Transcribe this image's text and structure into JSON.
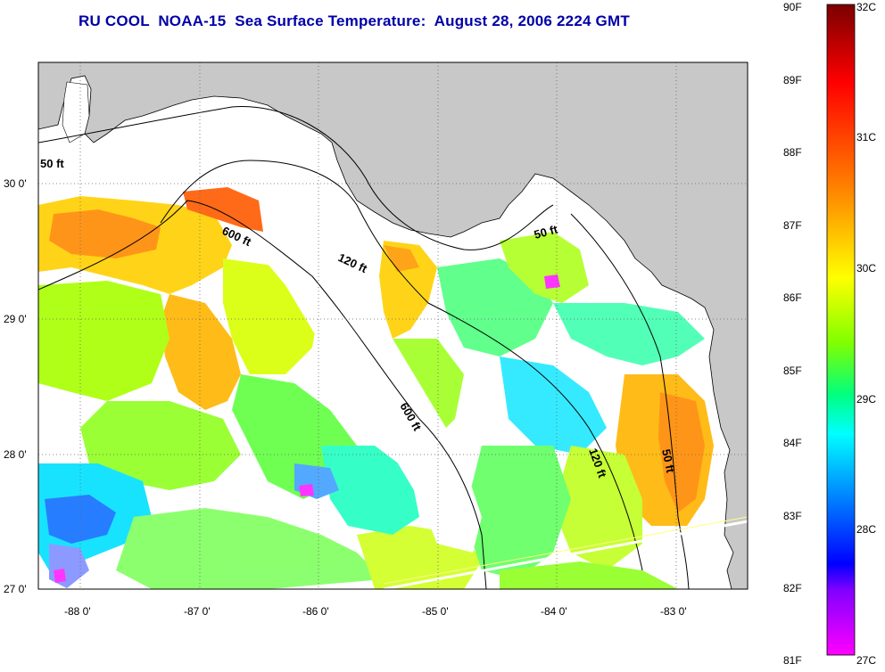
{
  "title": "RU COOL  NOAA-15  Sea Surface Temperature:  August 28, 2006 2224 GMT",
  "map": {
    "lon_range": [
      -88.33,
      -82.33
    ],
    "lat_range": [
      26.97,
      30.85
    ],
    "x_ticks": [
      "-88 0'",
      "-87 0'",
      "-86 0'",
      "-85 0'",
      "-84 0'",
      "-83 0'"
    ],
    "y_ticks": [
      "30 0'",
      "29 0'",
      "28 0'",
      "27 0'"
    ],
    "contours": [
      "50 ft",
      "600 ft",
      "120 ft",
      "50 ft",
      "600 ft",
      "120 ft",
      "50 ft"
    ]
  },
  "colorbar": {
    "f_labels": [
      "90F",
      "89F",
      "88F",
      "87F",
      "86F",
      "85F",
      "84F",
      "83F",
      "82F",
      "81F"
    ],
    "c_labels": [
      "32C",
      "31C",
      "30C",
      "29C",
      "28C",
      "27C"
    ],
    "colors": [
      "#7a0000",
      "#ff0000",
      "#ff8000",
      "#ffff00",
      "#80ff00",
      "#00ff80",
      "#00ffff",
      "#0080ff",
      "#0000ff",
      "#8000ff",
      "#ff00ff"
    ],
    "land_color": "#c8c8c8"
  }
}
